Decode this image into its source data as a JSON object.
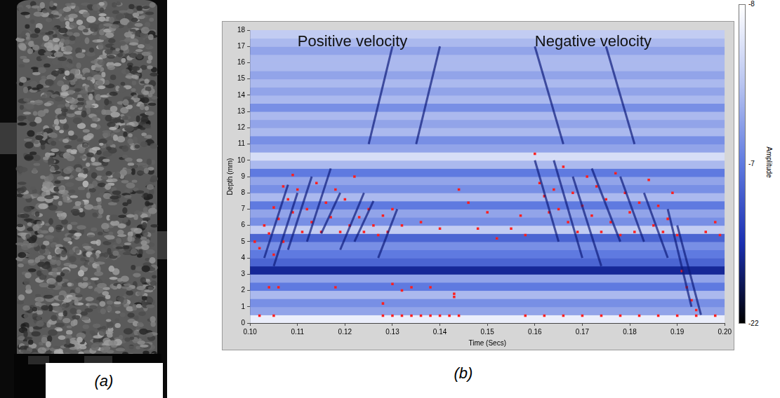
{
  "panel_a": {
    "label": "(a)"
  },
  "panel_b": {
    "label": "(b)"
  },
  "chart_data": {
    "type": "heatmap",
    "annotations": [
      "Positive velocity",
      "Negative velocity"
    ],
    "x_label": "Time (Secs)",
    "y_label": "Depth (mm)",
    "xlim": [
      0.1,
      0.2
    ],
    "xticks": [
      {
        "value": 0.1,
        "label": "0.10"
      },
      0.11,
      0.12,
      0.13,
      0.14,
      0.15,
      0.16,
      0.17,
      0.18,
      0.19,
      {
        "value": 0.2,
        "label": "0.20"
      }
    ],
    "ylim": [
      0,
      18
    ],
    "yticks": [
      0,
      1,
      2,
      3,
      4,
      5,
      6,
      7,
      8,
      9,
      10,
      11,
      12,
      13,
      14,
      15,
      16,
      17,
      18
    ],
    "grid": false,
    "bands": {
      "depths": [
        0,
        0.5,
        1,
        1.5,
        2,
        2.5,
        3,
        3.5,
        4,
        4.5,
        5,
        5.5,
        6,
        6.5,
        7,
        7.5,
        8,
        8.5,
        9,
        9.5,
        10,
        10.5,
        11,
        11.5,
        12,
        12.5,
        13,
        13.5,
        14,
        14.5,
        15,
        15.5,
        16,
        16.5,
        17,
        17.5,
        18
      ],
      "amplitudes": [
        -9,
        -13,
        -14,
        -12,
        -15,
        -13,
        -19,
        -16,
        -15,
        -14,
        -16,
        -11,
        -14,
        -13,
        -15,
        -12,
        -14,
        -13,
        -15,
        -12,
        -10,
        -13,
        -14,
        -12,
        -13,
        -12,
        -14,
        -12,
        -13,
        -12,
        -13,
        -12,
        -12,
        -13,
        -12,
        -11
      ]
    },
    "streaks": {
      "color": "#0d1a7a",
      "segments": [
        {
          "x": [
            0.103,
            0.108
          ],
          "y": [
            4,
            8.5
          ]
        },
        {
          "x": [
            0.105,
            0.11
          ],
          "y": [
            3.5,
            8
          ]
        },
        {
          "x": [
            0.108,
            0.113
          ],
          "y": [
            4.5,
            9
          ]
        },
        {
          "x": [
            0.112,
            0.117
          ],
          "y": [
            5,
            9.5
          ]
        },
        {
          "x": [
            0.115,
            0.119
          ],
          "y": [
            5.5,
            8
          ]
        },
        {
          "x": [
            0.119,
            0.124
          ],
          "y": [
            4.5,
            8
          ]
        },
        {
          "x": [
            0.122,
            0.126
          ],
          "y": [
            5,
            7.5
          ]
        },
        {
          "x": [
            0.127,
            0.131
          ],
          "y": [
            4,
            7
          ]
        },
        {
          "x": [
            0.125,
            0.13
          ],
          "y": [
            11,
            17
          ]
        },
        {
          "x": [
            0.135,
            0.14
          ],
          "y": [
            11,
            17
          ]
        },
        {
          "x": [
            0.16,
            0.165
          ],
          "y": [
            10,
            5
          ]
        },
        {
          "x": [
            0.164,
            0.17
          ],
          "y": [
            10,
            4
          ]
        },
        {
          "x": [
            0.168,
            0.174
          ],
          "y": [
            9,
            3.5
          ]
        },
        {
          "x": [
            0.172,
            0.178
          ],
          "y": [
            9.5,
            5
          ]
        },
        {
          "x": [
            0.178,
            0.183
          ],
          "y": [
            9,
            5
          ]
        },
        {
          "x": [
            0.183,
            0.188
          ],
          "y": [
            8,
            4
          ]
        },
        {
          "x": [
            0.188,
            0.193
          ],
          "y": [
            7,
            1
          ]
        },
        {
          "x": [
            0.19,
            0.195
          ],
          "y": [
            6,
            0.5
          ]
        },
        {
          "x": [
            0.16,
            0.166
          ],
          "y": [
            17,
            11
          ]
        },
        {
          "x": [
            0.175,
            0.181
          ],
          "y": [
            17,
            11
          ]
        }
      ]
    },
    "events": {
      "color": "#ff2020",
      "marker": "square",
      "points": [
        [
          0.101,
          5.0
        ],
        [
          0.102,
          4.6
        ],
        [
          0.103,
          6.0
        ],
        [
          0.104,
          5.5
        ],
        [
          0.105,
          4.2
        ],
        [
          0.105,
          7.1
        ],
        [
          0.106,
          6.4
        ],
        [
          0.107,
          5.0
        ],
        [
          0.107,
          8.4
        ],
        [
          0.108,
          7.6
        ],
        [
          0.109,
          6.8
        ],
        [
          0.109,
          9.1
        ],
        [
          0.11,
          8.2
        ],
        [
          0.111,
          5.6
        ],
        [
          0.112,
          7.0
        ],
        [
          0.113,
          6.2
        ],
        [
          0.114,
          8.6
        ],
        [
          0.115,
          5.6
        ],
        [
          0.116,
          7.4
        ],
        [
          0.117,
          6.5
        ],
        [
          0.118,
          8.2
        ],
        [
          0.119,
          5.6
        ],
        [
          0.12,
          7.6
        ],
        [
          0.121,
          6.0
        ],
        [
          0.122,
          9.0
        ],
        [
          0.123,
          6.5
        ],
        [
          0.124,
          5.6
        ],
        [
          0.125,
          7.0
        ],
        [
          0.126,
          6.0
        ],
        [
          0.127,
          5.4
        ],
        [
          0.128,
          6.6
        ],
        [
          0.129,
          5.6
        ],
        [
          0.13,
          7.0
        ],
        [
          0.132,
          6.0
        ],
        [
          0.134,
          2.2
        ],
        [
          0.136,
          6.2
        ],
        [
          0.14,
          5.8
        ],
        [
          0.143,
          1.6
        ],
        [
          0.143,
          1.8
        ],
        [
          0.144,
          8.2
        ],
        [
          0.146,
          7.4
        ],
        [
          0.148,
          5.8
        ],
        [
          0.15,
          6.8
        ],
        [
          0.152,
          5.2
        ],
        [
          0.104,
          2.2
        ],
        [
          0.106,
          2.2
        ],
        [
          0.118,
          2.2
        ],
        [
          0.128,
          1.2
        ],
        [
          0.13,
          2.4
        ],
        [
          0.132,
          2.0
        ],
        [
          0.138,
          2.2
        ],
        [
          0.102,
          0.45
        ],
        [
          0.105,
          0.45
        ],
        [
          0.128,
          0.45
        ],
        [
          0.13,
          0.45
        ],
        [
          0.132,
          0.45
        ],
        [
          0.134,
          0.45
        ],
        [
          0.136,
          0.45
        ],
        [
          0.138,
          0.45
        ],
        [
          0.14,
          0.45
        ],
        [
          0.142,
          0.45
        ],
        [
          0.144,
          0.45
        ],
        [
          0.16,
          10.4
        ],
        [
          0.161,
          8.6
        ],
        [
          0.162,
          7.8
        ],
        [
          0.163,
          6.8
        ],
        [
          0.164,
          8.2
        ],
        [
          0.165,
          7.0
        ],
        [
          0.166,
          9.6
        ],
        [
          0.167,
          6.2
        ],
        [
          0.168,
          8.0
        ],
        [
          0.169,
          5.6
        ],
        [
          0.17,
          7.2
        ],
        [
          0.171,
          9.0
        ],
        [
          0.172,
          6.6
        ],
        [
          0.173,
          8.4
        ],
        [
          0.174,
          5.6
        ],
        [
          0.175,
          7.6
        ],
        [
          0.176,
          6.2
        ],
        [
          0.177,
          9.2
        ],
        [
          0.178,
          5.4
        ],
        [
          0.179,
          8.0
        ],
        [
          0.18,
          6.8
        ],
        [
          0.181,
          5.6
        ],
        [
          0.182,
          7.4
        ],
        [
          0.184,
          8.8
        ],
        [
          0.185,
          6.0
        ],
        [
          0.186,
          7.2
        ],
        [
          0.187,
          5.6
        ],
        [
          0.188,
          6.4
        ],
        [
          0.189,
          8.0
        ],
        [
          0.19,
          5.4
        ],
        [
          0.191,
          3.2
        ],
        [
          0.192,
          2.2
        ],
        [
          0.193,
          1.4
        ],
        [
          0.194,
          0.8
        ],
        [
          0.196,
          5.6
        ],
        [
          0.198,
          6.2
        ],
        [
          0.199,
          5.4
        ],
        [
          0.155,
          5.8
        ],
        [
          0.157,
          6.6
        ],
        [
          0.158,
          5.4
        ],
        [
          0.158,
          0.45
        ],
        [
          0.162,
          0.45
        ],
        [
          0.166,
          0.45
        ],
        [
          0.17,
          0.45
        ],
        [
          0.174,
          0.45
        ],
        [
          0.178,
          0.45
        ],
        [
          0.182,
          0.45
        ],
        [
          0.186,
          0.45
        ],
        [
          0.19,
          0.45
        ],
        [
          0.194,
          0.45
        ],
        [
          0.198,
          0.45
        ]
      ]
    },
    "color_bar": {
      "title": "Amplitude",
      "clim": [
        -22,
        -8
      ],
      "ticks": [
        -8,
        -7,
        -22
      ],
      "colors": [
        "#000000",
        "#1a2fb0",
        "#5f7ae0",
        "#b8c4f0",
        "#ffffff"
      ]
    }
  }
}
